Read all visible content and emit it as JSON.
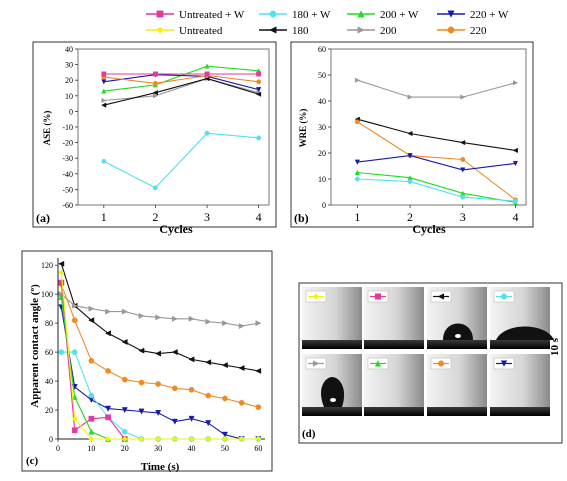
{
  "colors": {
    "untreated_w": "#e6399b",
    "c180_w": "#55e0f0",
    "c200_w": "#22dd22",
    "c220_w": "#1a1aa8",
    "untreated": "#f2f20a",
    "c180": "#111111",
    "c200": "#999999",
    "c220": "#f08a24"
  },
  "legend": {
    "row1": [
      {
        "key": "untreated_w",
        "label": "Untreated + W",
        "marker": "square"
      },
      {
        "key": "c180_w",
        "label": "180 + W",
        "marker": "circle"
      },
      {
        "key": "c200_w",
        "label": "200 + W",
        "marker": "triangle-up"
      },
      {
        "key": "c220_w",
        "label": "220 + W",
        "marker": "triangle-down"
      }
    ],
    "row2": [
      {
        "key": "untreated",
        "label": "Untreated",
        "marker": "diamond"
      },
      {
        "key": "c180",
        "label": "180",
        "marker": "triangle-left"
      },
      {
        "key": "c200",
        "label": "200",
        "marker": "triangle-right"
      },
      {
        "key": "c220",
        "label": "220",
        "marker": "circle"
      }
    ]
  },
  "chart_data": [
    {
      "panel": "(a)",
      "type": "line",
      "xlabel": "Cycles",
      "ylabel": "ASE (%)",
      "ylim": [
        -60,
        40
      ],
      "yticks": [
        -60,
        -50,
        -40,
        -30,
        -20,
        -10,
        0,
        10,
        20,
        30,
        40
      ],
      "x": [
        1,
        2,
        3,
        4
      ],
      "xticks": [
        1,
        2,
        3,
        4
      ],
      "grid": false,
      "series": [
        {
          "key": "c180_w",
          "values": [
            -32,
            -49,
            -14,
            -17
          ]
        },
        {
          "key": "c200",
          "values": [
            7,
            10,
            21,
            12
          ]
        },
        {
          "key": "c180",
          "values": [
            4,
            12,
            21,
            11
          ]
        },
        {
          "key": "c200_w",
          "values": [
            13,
            17,
            29,
            26
          ]
        },
        {
          "key": "c220_w",
          "values": [
            19,
            23.5,
            22.5,
            14
          ]
        },
        {
          "key": "c220",
          "values": [
            22,
            18,
            23,
            19
          ]
        },
        {
          "key": "untreated_w",
          "values": [
            24,
            24,
            24,
            24
          ]
        }
      ]
    },
    {
      "panel": "(b)",
      "type": "line",
      "xlabel": "Cycles",
      "ylabel": "WRE (%)",
      "ylim": [
        0,
        60
      ],
      "yticks": [
        0,
        10,
        20,
        30,
        40,
        50,
        60
      ],
      "x": [
        1,
        2,
        3,
        4
      ],
      "xticks": [
        1,
        2,
        3,
        4
      ],
      "grid": false,
      "series": [
        {
          "key": "c200",
          "values": [
            48,
            41.5,
            41.5,
            47
          ]
        },
        {
          "key": "c180",
          "values": [
            33,
            27.5,
            24,
            21
          ]
        },
        {
          "key": "c220",
          "values": [
            32,
            19,
            17.5,
            2
          ]
        },
        {
          "key": "c220_w",
          "values": [
            16.5,
            19,
            13.5,
            16
          ]
        },
        {
          "key": "c200_w",
          "values": [
            12.5,
            10.5,
            4.5,
            1
          ]
        },
        {
          "key": "c180_w",
          "values": [
            10,
            9,
            3,
            1.5
          ]
        }
      ]
    },
    {
      "panel": "(c)",
      "type": "line",
      "xlabel": "Time (s)",
      "ylabel": "Apparent contact angle (º)",
      "xlim": [
        0,
        62
      ],
      "ylim": [
        0,
        125
      ],
      "xticks": [
        0,
        10,
        20,
        30,
        40,
        50,
        60
      ],
      "yticks": [
        0,
        20,
        40,
        60,
        80,
        100,
        120
      ],
      "grid": false,
      "series": [
        {
          "key": "c180",
          "x": [
            1,
            5,
            10,
            15,
            20,
            25,
            30,
            35,
            40,
            45,
            50,
            55,
            60
          ],
          "values": [
            121,
            92,
            82,
            73,
            67,
            61,
            59,
            60,
            55,
            53,
            51,
            49,
            47
          ]
        },
        {
          "key": "c200",
          "x": [
            1,
            5,
            10,
            15,
            20,
            25,
            30,
            35,
            40,
            45,
            50,
            55,
            60
          ],
          "values": [
            100,
            92,
            90,
            88,
            88,
            85,
            84,
            83,
            83,
            81,
            80,
            78,
            80
          ]
        },
        {
          "key": "c220",
          "x": [
            1,
            5,
            10,
            15,
            20,
            25,
            30,
            35,
            40,
            45,
            50,
            55,
            60
          ],
          "values": [
            107,
            82,
            54,
            47,
            41,
            39,
            38,
            35,
            34,
            30,
            28,
            25,
            22
          ]
        },
        {
          "key": "c220_w",
          "x": [
            1,
            5,
            10,
            15,
            20,
            25,
            30,
            35,
            40,
            45,
            50,
            55,
            60
          ],
          "values": [
            91,
            36,
            27,
            21,
            20,
            19,
            18,
            12,
            14,
            11,
            3,
            0,
            0
          ]
        },
        {
          "key": "c180_w",
          "x": [
            1,
            5,
            10,
            15,
            20,
            25,
            30,
            35,
            40,
            45,
            50,
            55,
            60
          ],
          "values": [
            60,
            60,
            30,
            15,
            5,
            0,
            0,
            0,
            0,
            0,
            0,
            0,
            0
          ]
        },
        {
          "key": "untreated_w",
          "x": [
            1,
            5,
            10,
            15,
            20
          ],
          "values": [
            108,
            6,
            14,
            15,
            0
          ]
        },
        {
          "key": "c200_w",
          "x": [
            1,
            5,
            10,
            15,
            20
          ],
          "values": [
            98,
            29,
            5,
            0,
            0
          ]
        },
        {
          "key": "untreated",
          "x": [
            1,
            5,
            10,
            15,
            20,
            25,
            30,
            35,
            40,
            45,
            50,
            55,
            60
          ],
          "values": [
            115,
            14,
            0,
            0,
            0,
            0,
            0,
            0,
            0,
            0,
            0,
            0,
            0
          ]
        }
      ]
    }
  ],
  "photo_panel": {
    "panel": "(d)",
    "time_label": "10 s",
    "rows": [
      [
        {
          "key": "untreated",
          "marker": "diamond",
          "drop": "none"
        },
        {
          "key": "untreated_w",
          "marker": "square",
          "drop": "none"
        },
        {
          "key": "c180",
          "marker": "triangle-left",
          "drop": "medium"
        },
        {
          "key": "c180_w",
          "marker": "circle",
          "drop": "flat-large"
        }
      ],
      [
        {
          "key": "c200",
          "marker": "triangle-right",
          "drop": "tall"
        },
        {
          "key": "c200_w",
          "marker": "triangle-up",
          "drop": "none"
        },
        {
          "key": "c220",
          "marker": "circle",
          "drop": "none"
        },
        {
          "key": "c220_w",
          "marker": "triangle-down",
          "drop": "none"
        }
      ]
    ]
  }
}
